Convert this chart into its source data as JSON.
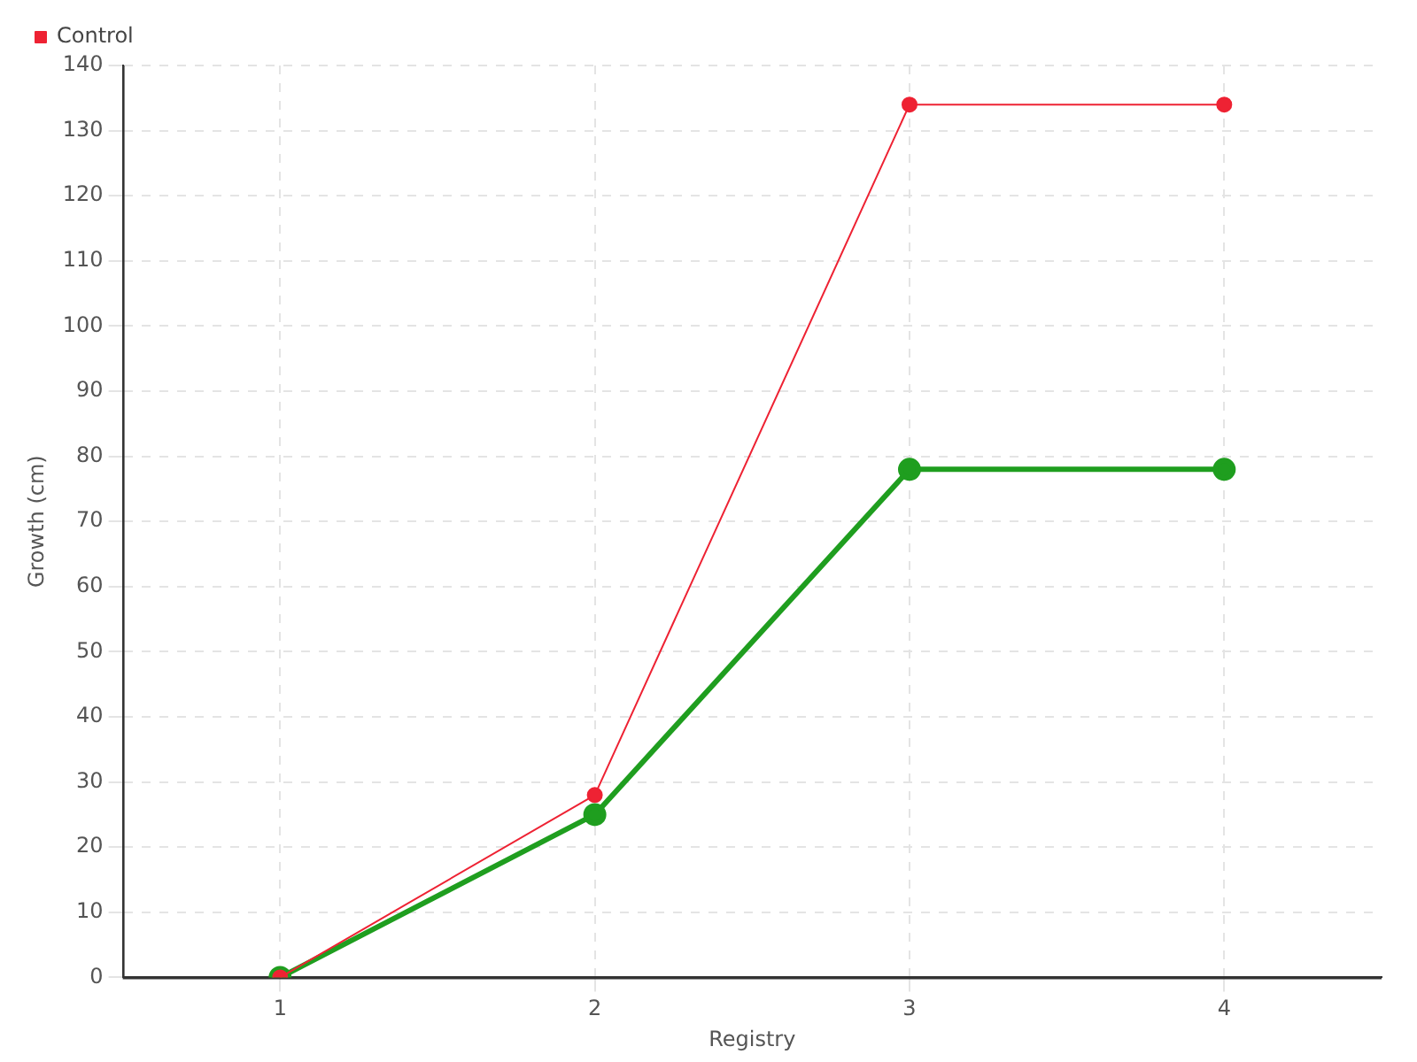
{
  "chart_data": {
    "type": "line",
    "xlabel": "Registry",
    "ylabel": "Growth (cm)",
    "categories": [
      "1",
      "2",
      "3",
      "4"
    ],
    "series": [
      {
        "color": "#1f9e1f",
        "values": [
          0,
          25,
          78,
          78
        ]
      },
      {
        "name": "Control",
        "color": "#ee2233",
        "values": [
          0,
          28,
          134,
          134
        ]
      }
    ],
    "ylim": [
      0,
      140
    ],
    "yticks": [
      0,
      10,
      20,
      30,
      40,
      50,
      60,
      70,
      80,
      90,
      100,
      110,
      120,
      130,
      140
    ],
    "grid": true,
    "legend": "top left",
    "marker": "circle",
    "line_style": "solid"
  }
}
